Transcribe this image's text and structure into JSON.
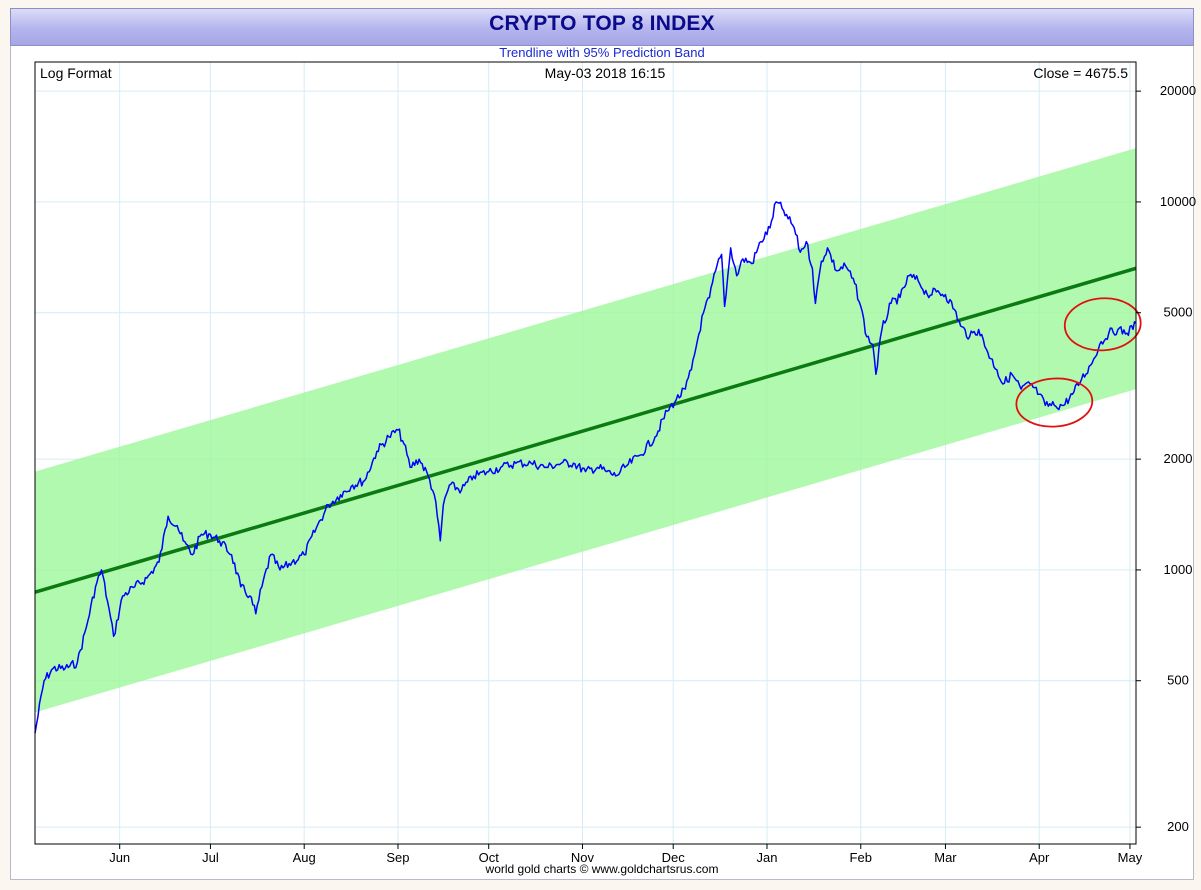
{
  "chart_data": {
    "type": "line",
    "title": "CRYPTO TOP 8 INDEX",
    "subtitle": "Trendline with 95% Prediction Band",
    "scale_label": "Log Format",
    "timestamp": "May-03  2018 16:15",
    "close_label": "Close = 4675.5",
    "credit": "world gold charts © www.goldchartsrus.com",
    "y_scale": "log",
    "ylim": [
      180,
      24000
    ],
    "xlim": [
      "2017-05-04",
      "2018-05-03"
    ],
    "y_ticks": [
      200,
      500,
      1000,
      2000,
      5000,
      10000,
      20000
    ],
    "y_tick_labels": [
      "200",
      "500",
      "1000",
      "2000",
      "5000",
      "10000",
      "20000"
    ],
    "x_ticks": [
      "2017-06-01",
      "2017-07-01",
      "2017-08-01",
      "2017-09-01",
      "2017-10-01",
      "2017-11-01",
      "2017-12-01",
      "2018-01-01",
      "2018-02-01",
      "2018-03-01",
      "2018-04-01",
      "2018-05-01"
    ],
    "x_tick_labels": [
      "Jun",
      "Jul",
      "Aug",
      "Sep",
      "Oct",
      "Nov",
      "Dec",
      "Jan",
      "Feb",
      "Mar",
      "Apr",
      "May"
    ],
    "grid": true,
    "trendline": {
      "start": [
        "2017-05-04",
        870
      ],
      "end": [
        "2018-05-03",
        6600
      ]
    },
    "prediction_band": {
      "upper": {
        "start": [
          "2017-05-04",
          1850
        ],
        "end": [
          "2018-05-03",
          14000
        ]
      },
      "lower": {
        "start": [
          "2017-05-04",
          410
        ],
        "end": [
          "2018-05-03",
          3100
        ]
      }
    },
    "series": [
      {
        "color": "#0000ff",
        "x": [
          "2017-05-04",
          "2017-05-07",
          "2017-05-10",
          "2017-05-14",
          "2017-05-18",
          "2017-05-21",
          "2017-05-24",
          "2017-05-26",
          "2017-05-28",
          "2017-05-30",
          "2017-06-02",
          "2017-06-06",
          "2017-06-10",
          "2017-06-14",
          "2017-06-17",
          "2017-06-20",
          "2017-06-22",
          "2017-06-25",
          "2017-06-28",
          "2017-07-01",
          "2017-07-04",
          "2017-07-08",
          "2017-07-11",
          "2017-07-14",
          "2017-07-16",
          "2017-07-18",
          "2017-07-21",
          "2017-07-24",
          "2017-07-28",
          "2017-08-01",
          "2017-08-05",
          "2017-08-09",
          "2017-08-13",
          "2017-08-17",
          "2017-08-21",
          "2017-08-25",
          "2017-08-29",
          "2017-09-01",
          "2017-09-03",
          "2017-09-05",
          "2017-09-08",
          "2017-09-11",
          "2017-09-13",
          "2017-09-14",
          "2017-09-15",
          "2017-09-16",
          "2017-09-18",
          "2017-09-22",
          "2017-09-26",
          "2017-10-01",
          "2017-10-05",
          "2017-10-10",
          "2017-10-15",
          "2017-10-20",
          "2017-10-25",
          "2017-10-29",
          "2017-11-02",
          "2017-11-06",
          "2017-11-09",
          "2017-11-12",
          "2017-11-15",
          "2017-11-20",
          "2017-11-25",
          "2017-11-29",
          "2017-12-02",
          "2017-12-05",
          "2017-12-07",
          "2017-12-09",
          "2017-12-11",
          "2017-12-13",
          "2017-12-15",
          "2017-12-17",
          "2017-12-18",
          "2017-12-20",
          "2017-12-22",
          "2017-12-24",
          "2017-12-27",
          "2017-12-30",
          "2018-01-02",
          "2018-01-04",
          "2018-01-06",
          "2018-01-08",
          "2018-01-10",
          "2018-01-12",
          "2018-01-14",
          "2018-01-16",
          "2018-01-17",
          "2018-01-19",
          "2018-01-21",
          "2018-01-24",
          "2018-01-27",
          "2018-01-30",
          "2018-02-01",
          "2018-02-03",
          "2018-02-05",
          "2018-02-06",
          "2018-02-08",
          "2018-02-11",
          "2018-02-14",
          "2018-02-17",
          "2018-02-20",
          "2018-02-23",
          "2018-02-26",
          "2018-03-01",
          "2018-03-04",
          "2018-03-06",
          "2018-03-09",
          "2018-03-12",
          "2018-03-15",
          "2018-03-18",
          "2018-03-20",
          "2018-03-23",
          "2018-03-26",
          "2018-03-29",
          "2018-04-01",
          "2018-04-03",
          "2018-04-06",
          "2018-04-09",
          "2018-04-12",
          "2018-04-15",
          "2018-04-18",
          "2018-04-21",
          "2018-04-24",
          "2018-04-27",
          "2018-04-30",
          "2018-05-03"
        ],
        "y": [
          360,
          500,
          540,
          540,
          560,
          700,
          900,
          1000,
          820,
          660,
          850,
          900,
          950,
          1050,
          1400,
          1320,
          1200,
          1100,
          1250,
          1250,
          1200,
          1100,
          900,
          850,
          760,
          900,
          1100,
          1000,
          1050,
          1100,
          1300,
          1500,
          1600,
          1700,
          1750,
          2100,
          2300,
          2400,
          2200,
          1900,
          2000,
          1800,
          1600,
          1400,
          1200,
          1500,
          1700,
          1650,
          1800,
          1850,
          1900,
          1950,
          1950,
          1900,
          1950,
          1950,
          1850,
          1900,
          1850,
          1800,
          1900,
          2050,
          2300,
          2700,
          2900,
          3100,
          3500,
          4200,
          5000,
          5500,
          6500,
          7200,
          5200,
          7500,
          6300,
          7000,
          6800,
          7800,
          8500,
          10000,
          9600,
          9000,
          8500,
          7300,
          7800,
          6600,
          5300,
          6900,
          7500,
          6500,
          6700,
          6000,
          5200,
          4300,
          4100,
          3400,
          4500,
          5300,
          5500,
          6300,
          6100,
          5600,
          5700,
          5600,
          5100,
          4600,
          4300,
          4500,
          3900,
          3500,
          3200,
          3400,
          3100,
          3200,
          3000,
          2800,
          2800,
          2800,
          3000,
          3300,
          3600,
          4100,
          4400,
          4500,
          4400,
          4675.5
        ]
      }
    ],
    "annotations": [
      {
        "shape": "ellipse",
        "color": "#e01010",
        "center": [
          "2018-04-06",
          2850
        ]
      },
      {
        "shape": "ellipse",
        "color": "#e01010",
        "center": [
          "2018-04-22",
          4650
        ]
      }
    ]
  }
}
